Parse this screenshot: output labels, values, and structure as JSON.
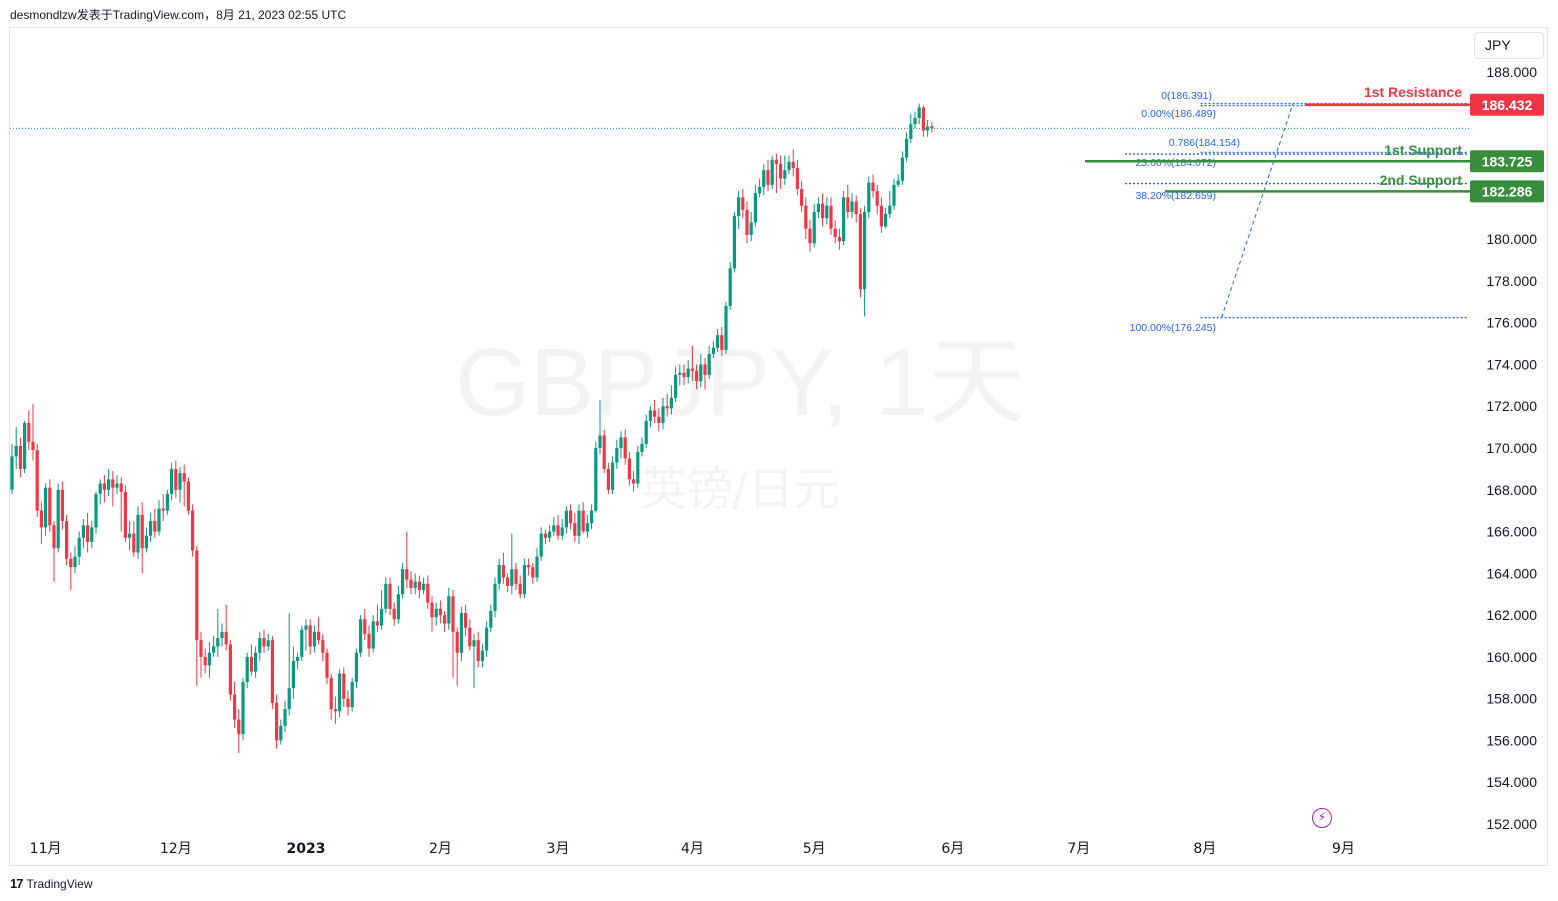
{
  "header": {
    "text": "desmondlzw发表于TradingView.com，8月 21, 2023 02:55 UTC"
  },
  "footer": {
    "logo_mark": "17",
    "brand": "TradingView"
  },
  "currency": "JPY",
  "watermark": {
    "symbol": "GBPJPY, 1天",
    "name": "英镑/日元"
  },
  "colors": {
    "up": "#089981",
    "down": "#f23645",
    "resistance": "#f23645",
    "support": "#388e3c",
    "fib": "#2962ff",
    "grid_text": "#131722"
  },
  "icons": {
    "alert": "lightning-bolt-icon"
  },
  "chart_data": {
    "type": "candlestick",
    "symbol": "GBPJPY",
    "timeframe": "1天",
    "ylim": [
      151,
      190
    ],
    "y_ticks": [
      152,
      154,
      156,
      158,
      160,
      162,
      164,
      166,
      168,
      170,
      172,
      174,
      176,
      178,
      180,
      182,
      188
    ],
    "y_tick_labels": [
      "152.000",
      "154.000",
      "156.000",
      "158.000",
      "160.000",
      "162.000",
      "164.000",
      "166.000",
      "168.000",
      "170.000",
      "172.000",
      "174.000",
      "176.000",
      "178.000",
      "180.000",
      "",
      "188.000"
    ],
    "x_labels": [
      {
        "label": "11月",
        "idx": 8,
        "bold": false
      },
      {
        "label": "12月",
        "idx": 39,
        "bold": false
      },
      {
        "label": "2023",
        "idx": 70,
        "bold": true
      },
      {
        "label": "2月",
        "idx": 102,
        "bold": false
      },
      {
        "label": "3月",
        "idx": 130,
        "bold": false
      },
      {
        "label": "4月",
        "idx": 162,
        "bold": false
      },
      {
        "label": "5月",
        "idx": 191,
        "bold": false
      },
      {
        "label": "6月",
        "idx": 224,
        "bold": false
      },
      {
        "label": "7月",
        "idx": 254,
        "bold": false
      },
      {
        "label": "8月",
        "idx": 284,
        "bold": false
      },
      {
        "label": "9月",
        "idx": 317,
        "bold": false
      }
    ],
    "candles": [
      [
        168.0,
        169.6,
        170.2,
        167.8
      ],
      [
        169.6,
        170.1,
        171.0,
        169.0
      ],
      [
        170.1,
        169.0,
        170.5,
        168.6
      ],
      [
        169.0,
        171.2,
        171.3,
        168.8
      ],
      [
        171.2,
        170.3,
        171.8,
        169.9
      ],
      [
        170.3,
        169.9,
        172.1,
        169.4
      ],
      [
        169.9,
        167.0,
        170.2,
        166.7
      ],
      [
        167.0,
        166.2,
        167.4,
        165.4
      ],
      [
        166.2,
        168.1,
        168.3,
        165.8
      ],
      [
        168.1,
        166.3,
        168.5,
        166.0
      ],
      [
        166.3,
        165.2,
        166.5,
        163.6
      ],
      [
        165.2,
        168.0,
        168.3,
        165.0
      ],
      [
        168.0,
        166.5,
        168.4,
        166.1
      ],
      [
        166.5,
        164.7,
        166.8,
        164.4
      ],
      [
        164.7,
        164.3,
        165.0,
        163.2
      ],
      [
        164.3,
        164.8,
        165.3,
        164.0
      ],
      [
        164.8,
        165.7,
        166.0,
        164.4
      ],
      [
        165.7,
        166.3,
        166.6,
        165.2
      ],
      [
        166.3,
        165.5,
        166.9,
        165.0
      ],
      [
        165.5,
        166.2,
        166.5,
        165.2
      ],
      [
        166.2,
        167.8,
        167.9,
        165.9
      ],
      [
        167.8,
        168.3,
        168.5,
        167.3
      ],
      [
        168.3,
        168.0,
        168.7,
        167.4
      ],
      [
        168.0,
        168.5,
        169.0,
        167.7
      ],
      [
        168.5,
        168.1,
        168.9,
        167.2
      ],
      [
        168.1,
        168.3,
        168.7,
        167.8
      ],
      [
        168.3,
        167.9,
        168.6,
        166.0
      ],
      [
        167.9,
        165.7,
        168.2,
        165.5
      ],
      [
        165.7,
        165.9,
        166.5,
        165.1
      ],
      [
        165.9,
        165.0,
        166.5,
        164.8
      ],
      [
        165.0,
        166.8,
        167.2,
        164.7
      ],
      [
        166.8,
        165.2,
        167.4,
        164.0
      ],
      [
        165.2,
        165.8,
        166.2,
        165.0
      ],
      [
        165.8,
        166.5,
        166.9,
        165.5
      ],
      [
        166.5,
        166.0,
        167.1,
        165.7
      ],
      [
        166.0,
        167.1,
        167.5,
        165.8
      ],
      [
        167.1,
        167.0,
        167.8,
        166.5
      ],
      [
        167.0,
        167.8,
        168.0,
        166.8
      ],
      [
        167.8,
        169.0,
        169.3,
        167.5
      ],
      [
        169.0,
        168.0,
        169.4,
        167.6
      ],
      [
        168.0,
        168.8,
        169.1,
        167.4
      ],
      [
        168.8,
        168.4,
        169.2,
        167.2
      ],
      [
        168.4,
        167.0,
        168.6,
        166.8
      ],
      [
        167.0,
        165.1,
        167.3,
        164.8
      ],
      [
        165.1,
        160.8,
        165.3,
        158.6
      ],
      [
        160.8,
        160.0,
        161.2,
        159.0
      ],
      [
        160.0,
        159.6,
        160.4,
        159.2
      ],
      [
        159.6,
        160.2,
        160.7,
        159.0
      ],
      [
        160.2,
        160.5,
        161.0,
        160.0
      ],
      [
        160.5,
        160.9,
        162.3,
        160.0
      ],
      [
        160.9,
        161.2,
        161.6,
        160.5
      ],
      [
        161.2,
        160.6,
        162.5,
        160.3
      ],
      [
        160.6,
        158.2,
        160.8,
        157.9
      ],
      [
        158.2,
        157.0,
        158.8,
        156.6
      ],
      [
        157.0,
        156.3,
        157.5,
        155.4
      ],
      [
        156.3,
        158.8,
        159.0,
        156.0
      ],
      [
        158.8,
        160.0,
        160.2,
        158.5
      ],
      [
        160.0,
        159.3,
        160.6,
        159.1
      ],
      [
        159.3,
        160.2,
        160.5,
        159.0
      ],
      [
        160.2,
        160.9,
        161.2,
        159.8
      ],
      [
        160.9,
        160.5,
        161.3,
        160.2
      ],
      [
        160.5,
        160.8,
        161.1,
        160.3
      ],
      [
        160.8,
        157.8,
        161.0,
        157.5
      ],
      [
        157.8,
        156.0,
        158.2,
        155.6
      ],
      [
        156.0,
        156.7,
        157.0,
        155.8
      ],
      [
        156.7,
        157.5,
        157.9,
        156.4
      ],
      [
        157.5,
        158.5,
        162.1,
        157.2
      ],
      [
        158.5,
        159.8,
        160.5,
        158.0
      ],
      [
        159.8,
        160.0,
        160.2,
        159.4
      ],
      [
        160.0,
        161.3,
        161.5,
        159.8
      ],
      [
        161.3,
        161.5,
        161.8,
        160.3
      ],
      [
        161.5,
        160.5,
        161.8,
        160.1
      ],
      [
        160.5,
        161.2,
        161.5,
        160.2
      ],
      [
        161.2,
        160.8,
        161.9,
        160.6
      ],
      [
        160.8,
        160.2,
        161.1,
        159.8
      ],
      [
        160.2,
        159.0,
        160.4,
        158.7
      ],
      [
        159.0,
        157.5,
        159.2,
        157.0
      ],
      [
        157.5,
        157.4,
        158.1,
        156.8
      ],
      [
        157.4,
        159.2,
        159.4,
        157.1
      ],
      [
        159.2,
        158.0,
        159.5,
        157.6
      ],
      [
        158.0,
        157.6,
        158.4,
        157.2
      ],
      [
        157.6,
        158.8,
        159.0,
        157.4
      ],
      [
        158.8,
        160.2,
        160.4,
        158.5
      ],
      [
        160.2,
        161.8,
        162.0,
        160.0
      ],
      [
        161.8,
        161.1,
        162.3,
        160.8
      ],
      [
        161.1,
        160.4,
        161.5,
        160.0
      ],
      [
        160.4,
        161.7,
        162.0,
        160.2
      ],
      [
        161.7,
        161.5,
        162.5,
        161.2
      ],
      [
        161.5,
        162.3,
        163.2,
        161.3
      ],
      [
        162.3,
        163.5,
        163.8,
        162.1
      ],
      [
        163.5,
        162.3,
        163.8,
        162.0
      ],
      [
        162.3,
        161.8,
        162.6,
        161.5
      ],
      [
        161.8,
        163.0,
        163.4,
        161.6
      ],
      [
        163.0,
        164.2,
        164.5,
        162.8
      ],
      [
        164.2,
        163.7,
        166.0,
        163.3
      ],
      [
        163.7,
        163.3,
        164.1,
        163.0
      ],
      [
        163.3,
        163.6,
        164.0,
        163.0
      ],
      [
        163.6,
        163.2,
        163.9,
        162.8
      ],
      [
        163.2,
        163.5,
        163.8,
        163.0
      ],
      [
        163.5,
        162.6,
        163.9,
        162.3
      ],
      [
        162.6,
        161.9,
        162.9,
        161.2
      ],
      [
        161.9,
        162.3,
        162.6,
        161.5
      ],
      [
        162.3,
        162.0,
        162.7,
        161.6
      ],
      [
        162.0,
        161.6,
        162.2,
        161.2
      ],
      [
        161.6,
        162.9,
        163.3,
        161.3
      ],
      [
        162.9,
        161.2,
        163.2,
        159.0
      ],
      [
        161.2,
        160.2,
        161.4,
        158.6
      ],
      [
        160.2,
        162.1,
        162.4,
        159.8
      ],
      [
        162.1,
        161.4,
        162.5,
        161.0
      ],
      [
        161.4,
        160.5,
        161.8,
        160.3
      ],
      [
        160.5,
        160.8,
        161.1,
        158.5
      ],
      [
        160.8,
        159.8,
        161.2,
        159.5
      ],
      [
        159.8,
        160.3,
        160.6,
        159.5
      ],
      [
        160.3,
        161.4,
        161.7,
        160.0
      ],
      [
        161.4,
        162.2,
        162.5,
        161.2
      ],
      [
        162.2,
        163.5,
        163.8,
        161.9
      ],
      [
        163.5,
        164.4,
        164.7,
        163.2
      ],
      [
        164.4,
        163.8,
        165.0,
        163.5
      ],
      [
        163.8,
        163.4,
        164.0,
        163.1
      ],
      [
        163.4,
        164.2,
        165.9,
        163.0
      ],
      [
        164.2,
        163.5,
        164.5,
        163.2
      ],
      [
        163.5,
        163.0,
        163.9,
        162.8
      ],
      [
        163.0,
        164.4,
        164.7,
        162.8
      ],
      [
        164.4,
        164.3,
        164.7,
        163.9
      ],
      [
        164.3,
        163.8,
        164.5,
        163.5
      ],
      [
        163.8,
        164.8,
        165.2,
        163.6
      ],
      [
        164.8,
        165.9,
        166.2,
        164.6
      ],
      [
        165.9,
        165.7,
        166.1,
        165.4
      ],
      [
        165.7,
        166.0,
        166.3,
        165.5
      ],
      [
        166.0,
        166.3,
        166.7,
        165.8
      ],
      [
        166.3,
        165.8,
        166.8,
        165.6
      ],
      [
        165.8,
        166.2,
        166.6,
        165.6
      ],
      [
        166.2,
        167.0,
        167.2,
        165.9
      ],
      [
        167.0,
        166.4,
        167.3,
        166.1
      ],
      [
        166.4,
        165.8,
        166.9,
        165.5
      ],
      [
        165.8,
        167.0,
        167.3,
        165.4
      ],
      [
        167.0,
        166.0,
        167.4,
        165.9
      ],
      [
        166.0,
        166.4,
        166.8,
        165.7
      ],
      [
        166.4,
        167.0,
        167.3,
        166.1
      ],
      [
        167.0,
        170.0,
        170.3,
        166.9
      ],
      [
        170.0,
        170.6,
        172.3,
        169.7
      ],
      [
        170.6,
        169.0,
        170.9,
        168.8
      ],
      [
        169.0,
        168.0,
        169.3,
        167.8
      ],
      [
        168.0,
        169.3,
        169.6,
        167.8
      ],
      [
        169.3,
        170.0,
        170.4,
        169.0
      ],
      [
        170.0,
        170.5,
        170.8,
        169.5
      ],
      [
        170.5,
        169.5,
        170.9,
        169.2
      ],
      [
        169.5,
        168.5,
        169.8,
        168.2
      ],
      [
        168.5,
        168.3,
        168.9,
        167.9
      ],
      [
        168.3,
        169.8,
        170.1,
        168.1
      ],
      [
        169.8,
        170.2,
        170.5,
        169.6
      ],
      [
        170.2,
        171.3,
        171.6,
        170.0
      ],
      [
        171.3,
        171.8,
        172.0,
        171.0
      ],
      [
        171.8,
        171.5,
        172.3,
        171.2
      ],
      [
        171.5,
        171.2,
        171.9,
        170.8
      ],
      [
        171.2,
        172.0,
        172.4,
        170.9
      ],
      [
        172.0,
        171.9,
        172.6,
        171.5
      ],
      [
        171.9,
        172.4,
        173.0,
        171.6
      ],
      [
        172.4,
        173.5,
        173.9,
        172.2
      ],
      [
        173.5,
        173.6,
        174.0,
        173.0
      ],
      [
        173.6,
        173.4,
        174.0,
        173.0
      ],
      [
        173.4,
        173.8,
        174.2,
        173.1
      ],
      [
        173.8,
        173.7,
        174.9,
        173.2
      ],
      [
        173.7,
        173.2,
        174.0,
        172.8
      ],
      [
        173.2,
        174.0,
        174.5,
        172.9
      ],
      [
        174.0,
        173.5,
        174.3,
        172.8
      ],
      [
        173.5,
        174.5,
        174.9,
        173.3
      ],
      [
        174.5,
        174.8,
        175.1,
        174.3
      ],
      [
        174.8,
        175.4,
        175.7,
        174.6
      ],
      [
        175.4,
        174.7,
        175.8,
        174.4
      ],
      [
        174.7,
        176.8,
        177.0,
        174.5
      ],
      [
        176.8,
        178.6,
        178.9,
        176.6
      ],
      [
        178.6,
        181.1,
        181.3,
        178.4
      ],
      [
        181.1,
        182.0,
        182.3,
        180.5
      ],
      [
        182.0,
        181.4,
        182.4,
        181.0
      ],
      [
        181.4,
        180.2,
        181.8,
        179.8
      ],
      [
        180.2,
        180.8,
        181.3,
        179.9
      ],
      [
        180.8,
        182.2,
        182.6,
        180.6
      ],
      [
        182.2,
        182.5,
        182.9,
        182.0
      ],
      [
        182.5,
        183.3,
        183.6,
        182.1
      ],
      [
        183.3,
        182.6,
        183.8,
        182.3
      ],
      [
        182.6,
        183.8,
        184.0,
        182.4
      ],
      [
        183.8,
        183.6,
        184.1,
        182.2
      ],
      [
        183.6,
        182.9,
        184.0,
        182.4
      ],
      [
        182.9,
        183.3,
        184.0,
        182.6
      ],
      [
        183.3,
        183.7,
        184.0,
        183.1
      ],
      [
        183.7,
        183.4,
        184.3,
        183.0
      ],
      [
        183.4,
        182.4,
        183.8,
        182.1
      ],
      [
        182.4,
        181.6,
        182.8,
        181.3
      ],
      [
        181.6,
        180.5,
        182.0,
        180.0
      ],
      [
        180.5,
        179.8,
        180.9,
        179.4
      ],
      [
        179.8,
        181.3,
        181.7,
        179.6
      ],
      [
        181.3,
        181.7,
        182.0,
        181.0
      ],
      [
        181.7,
        181.0,
        182.2,
        180.6
      ],
      [
        181.0,
        181.6,
        182.0,
        180.7
      ],
      [
        181.6,
        180.5,
        182.0,
        180.2
      ],
      [
        180.5,
        180.1,
        180.9,
        179.8
      ],
      [
        180.1,
        179.9,
        180.5,
        179.5
      ],
      [
        179.9,
        182.0,
        182.3,
        179.7
      ],
      [
        182.0,
        181.3,
        182.6,
        181.0
      ],
      [
        181.3,
        181.8,
        182.2,
        181.0
      ],
      [
        181.8,
        181.2,
        182.1,
        180.8
      ],
      [
        181.2,
        177.6,
        181.5,
        177.2
      ],
      [
        177.6,
        181.3,
        181.6,
        176.3
      ],
      [
        181.3,
        182.7,
        183.0,
        181.0
      ],
      [
        182.7,
        182.3,
        183.1,
        182.0
      ],
      [
        182.3,
        181.6,
        182.6,
        181.2
      ],
      [
        181.6,
        180.6,
        182.0,
        180.3
      ],
      [
        180.6,
        181.2,
        181.5,
        180.5
      ],
      [
        181.2,
        181.6,
        182.3,
        181.0
      ],
      [
        181.6,
        182.6,
        182.9,
        181.4
      ],
      [
        182.6,
        182.8,
        183.1,
        182.5
      ],
      [
        182.8,
        183.9,
        184.2,
        182.6
      ],
      [
        183.9,
        184.8,
        185.1,
        183.7
      ],
      [
        184.8,
        185.5,
        186.0,
        184.6
      ],
      [
        185.5,
        185.8,
        186.1,
        185.3
      ],
      [
        185.8,
        186.3,
        186.49,
        185.5
      ],
      [
        186.3,
        185.2,
        186.4,
        184.9
      ],
      [
        185.2,
        185.4,
        185.7,
        184.9
      ],
      [
        185.4,
        185.3,
        185.6,
        185.1
      ]
    ],
    "fib_levels": [
      {
        "label": "0(186.391)",
        "value": 186.391
      },
      {
        "label": "0.00%(186.489)",
        "value": 186.489
      },
      {
        "label": "0.786(184.154)",
        "value": 184.154
      },
      {
        "label": "23.60%(184.072)",
        "value": 184.072
      },
      {
        "label": "38.20%(182.659)",
        "value": 182.659
      },
      {
        "label": "100.00%(176.245)",
        "value": 176.245
      }
    ],
    "levels": [
      {
        "name": "1st Resistance",
        "value": 186.432,
        "label": "186.432",
        "color": "#f23645"
      },
      {
        "name": "1st Support",
        "value": 183.725,
        "label": "183.725",
        "color": "#388e3c"
      },
      {
        "name": "2nd Support",
        "value": 182.286,
        "label": "182.286",
        "color": "#388e3c"
      }
    ],
    "current_price": 185.3
  }
}
